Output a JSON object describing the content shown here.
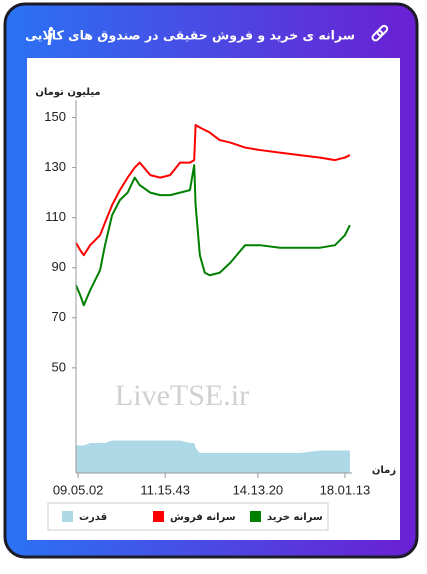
{
  "chart_data": {
    "type": "line",
    "title": "سرانه ی خرید و فروش حقیقی در صندوق های کالایی",
    "y_label": "میلیون تومان",
    "x_label": "زمان",
    "watermark": "LiveTSE.ir",
    "x": [
      0,
      0.6,
      1.1,
      2,
      3.4,
      4.1,
      5.1,
      6.2,
      7.3,
      8.3,
      9,
      10.5,
      11.9,
      13.3,
      14.7,
      16.1,
      16.7,
      16.9,
      17.5,
      18.2,
      18.9,
      20.3,
      21.8,
      23.9,
      26,
      28.8,
      31.6,
      34.5,
      36.6,
      38,
      38.7
    ],
    "series": [
      {
        "name": "سرانه خرید",
        "color": "#008000",
        "type": "line",
        "values": [
          83,
          79,
          75,
          81,
          89,
          99,
          111,
          117,
          120,
          126,
          123,
          120,
          119,
          119,
          120,
          121,
          131,
          115,
          95,
          88,
          87,
          88,
          92,
          99,
          99,
          98,
          98,
          98,
          99,
          103,
          107
        ]
      },
      {
        "name": "سرانه فروش",
        "color": "#ff0000",
        "type": "line",
        "values": [
          100,
          97,
          95,
          99,
          103,
          108,
          115,
          121,
          126,
          130,
          132,
          127,
          126,
          127,
          132,
          132,
          133,
          147,
          146,
          145,
          144,
          141,
          140,
          138,
          137,
          136,
          135,
          134,
          133,
          134,
          135
        ]
      },
      {
        "name": "قدرت",
        "color": "#add8e6",
        "type": "area",
        "values": [
          19,
          19,
          19,
          20,
          20,
          20,
          21,
          21,
          21,
          21,
          21,
          21,
          21,
          21,
          21,
          20,
          20,
          18,
          16,
          16,
          16,
          16,
          16,
          16,
          16,
          16,
          16,
          17,
          17,
          17,
          17
        ]
      }
    ],
    "xlim": [
      0,
      39
    ],
    "xticks": [
      {
        "value": 0.3,
        "label": "09.05.02"
      },
      {
        "value": 12.6,
        "label": "11.15.43"
      },
      {
        "value": 25.7,
        "label": "14.13.20"
      },
      {
        "value": 38,
        "label": "18.01.13"
      }
    ],
    "ylim": [
      8,
      157
    ],
    "yticks": [
      50,
      70,
      90,
      110,
      130,
      150
    ],
    "grid": false,
    "legend": "bottom"
  }
}
